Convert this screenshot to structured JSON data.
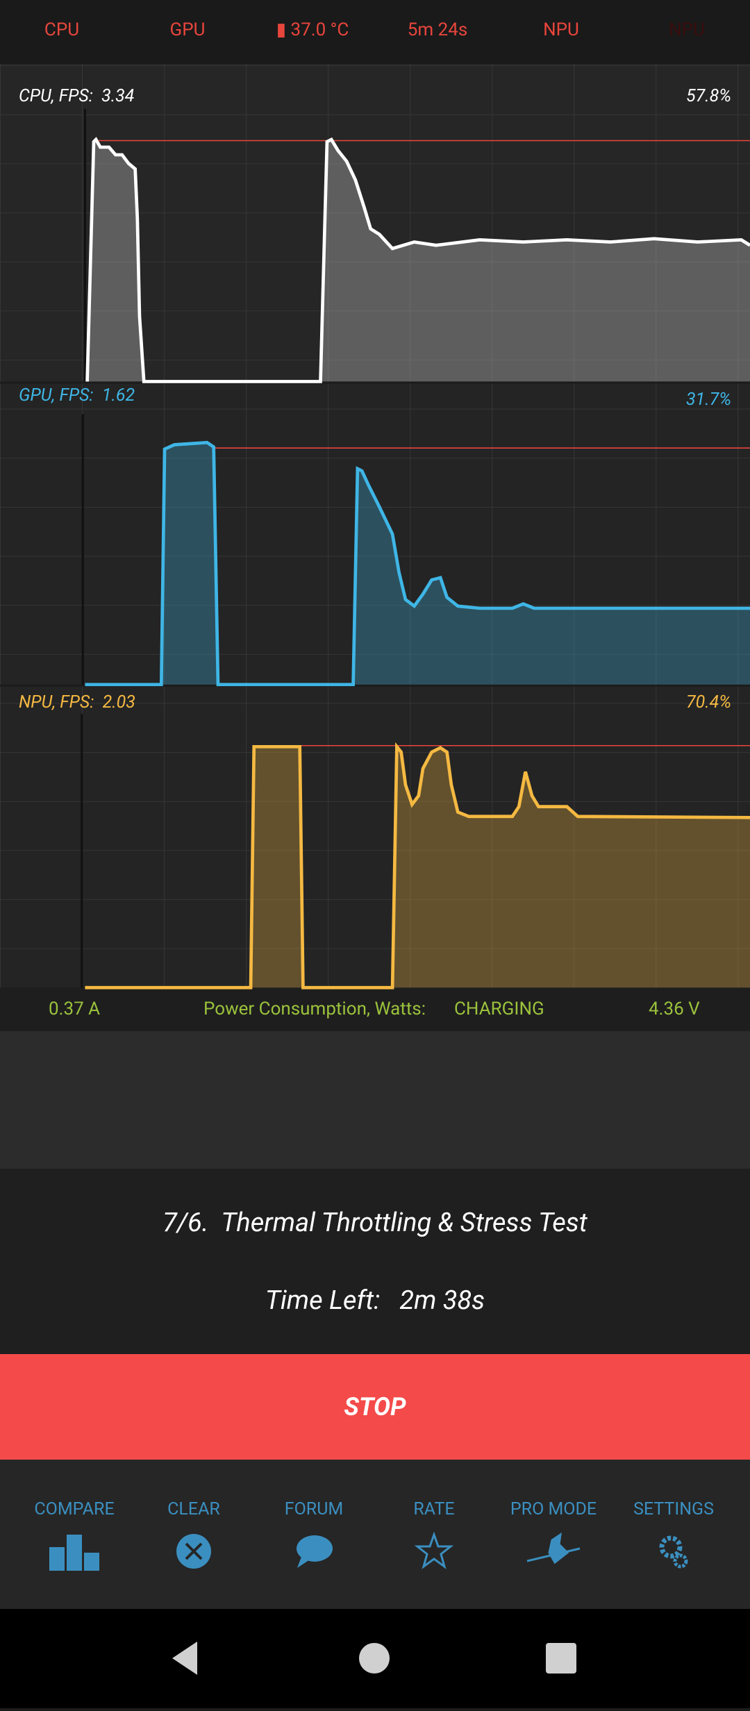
{
  "status_bar": {
    "items": [
      "CPU",
      "GPU",
      "37.0 °C",
      "5m 24s",
      "NPU",
      "NPU"
    ]
  },
  "graphs": [
    {
      "label": "CPU, FPS:",
      "fps": "3.34",
      "percent": "57.8%"
    },
    {
      "label": "GPU, FPS:",
      "fps": "1.62",
      "percent": "31.7%"
    },
    {
      "label": "NPU, FPS:",
      "fps": "2.03",
      "percent": "70.4%"
    }
  ],
  "power": {
    "current": "0.37 A",
    "label": "Power Consumption, Watts:",
    "status": "CHARGING",
    "voltage": "4.36 V"
  },
  "test": {
    "title": "7/6.  Thermal Throttling & Stress Test",
    "time_label": "Time Left:",
    "time": "2m 38s"
  },
  "stop": "STOP",
  "nav": [
    "COMPARE",
    "CLEAR",
    "FORUM",
    "RATE",
    "PRO MODE",
    "SETTINGS"
  ]
}
